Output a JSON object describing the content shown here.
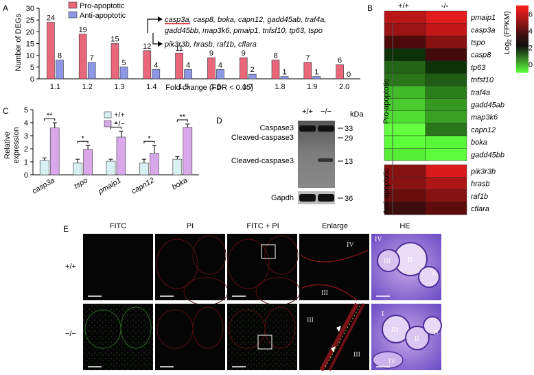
{
  "panels": {
    "A": "A",
    "B": "B",
    "C": "C",
    "D": "D",
    "E": "E"
  },
  "chart_data": [
    {
      "panel": "A",
      "type": "bar",
      "categories": [
        "1.1",
        "1.2",
        "1.3",
        "1.4",
        "1.5",
        "1.6",
        "1.7",
        "1.8",
        "1.9",
        "2.0"
      ],
      "series": [
        {
          "name": "Pro-apoptotic",
          "values": [
            24,
            19,
            15,
            12,
            11,
            9,
            9,
            8,
            7,
            6
          ],
          "color": "#e8677b"
        },
        {
          "name": "Anti-apoptotic",
          "values": [
            8,
            7,
            5,
            4,
            4,
            4,
            2,
            1,
            1,
            0
          ],
          "color": "#8e97e6"
        }
      ],
      "ylabel": "Number of DEGs",
      "xlabel": "Fold change (FDR < 0.05)",
      "ylim": [
        0,
        30
      ],
      "yticks": [
        "0",
        "5",
        "10",
        "15",
        "20",
        "25",
        "30"
      ],
      "annotation_pro": "casp3a, casp8, boka, capn12, gadd45ab, traf4a,",
      "annotation_pro_highlight": "casp3a",
      "annotation_pro_line2": "gadd45bb, map3k6, pmaip1, tnfsf10, tp63, tspo",
      "annotation_anti": "pik3r3b, hrasb, raf1b, cflara"
    },
    {
      "panel": "B",
      "type": "heatmap",
      "columns": [
        "+/+",
        "-/-"
      ],
      "rows": [
        "pmaip1",
        "casp3a",
        "tspo",
        "casp8",
        "tp63",
        "tnfsf10",
        "traf4a",
        "gadd45ab",
        "map3k6",
        "capn12",
        "boka",
        "gadd45bb",
        "pik3r3b",
        "hrasb",
        "raf1b",
        "cflara"
      ],
      "values": [
        [
          5.6,
          6.4
        ],
        [
          5.0,
          5.8
        ],
        [
          3.4,
          4.6
        ],
        [
          1.4,
          3.2
        ],
        [
          0.8,
          1.4
        ],
        [
          0.6,
          0.9
        ],
        [
          -0.2,
          0.5
        ],
        [
          -0.4,
          0.2
        ],
        [
          -0.6,
          0.1
        ],
        [
          -1.2,
          0.6
        ],
        [
          -1.0,
          -0.9
        ],
        [
          -0.8,
          -1.0
        ],
        [
          4.6,
          6.2
        ],
        [
          4.6,
          5.4
        ],
        [
          4.0,
          4.6
        ],
        [
          3.0,
          3.8
        ]
      ],
      "groups": [
        "Pro-apoptotic",
        "Anti-apoptotic"
      ],
      "colorbar_label": "Log2 (FPKM)",
      "colorbar_ticks": [
        "6",
        "4",
        "2",
        "0"
      ],
      "colorbar_range": [
        -1,
        7
      ]
    },
    {
      "panel": "C",
      "type": "bar",
      "categories": [
        "casp3a",
        "tspo",
        "pmaip1",
        "capn12",
        "boka"
      ],
      "series": [
        {
          "name": "+/+",
          "values": [
            1.1,
            0.9,
            1.05,
            0.9,
            1.2
          ],
          "errors": [
            0.2,
            0.3,
            0.15,
            0.3,
            0.2
          ],
          "color": "#d8f0f2"
        },
        {
          "name": "−/−",
          "values": [
            3.6,
            1.95,
            2.9,
            1.65,
            3.65
          ],
          "errors": [
            0.4,
            0.3,
            0.45,
            0.6,
            0.25
          ],
          "color": "#d8a8ea"
        }
      ],
      "ylabel": "Relative expression",
      "ylim": [
        0,
        5
      ],
      "yticks": [
        "0",
        "1",
        "2",
        "3",
        "4",
        "5"
      ],
      "significance": [
        "**",
        "*",
        "*",
        "*",
        "**"
      ]
    }
  ],
  "blot": {
    "cols": [
      "+/+",
      "−/−"
    ],
    "unit": "kDa",
    "labels": [
      "Caspase3",
      "Cleaved-caspase3",
      "Cleaved-caspase3",
      "Gapdh"
    ],
    "markers": [
      "33",
      "29",
      "13",
      "36"
    ]
  },
  "micro": {
    "columns": [
      "FITC",
      "PI",
      "FITC + PI",
      "Enlarge",
      "HE"
    ],
    "rows": [
      "+/+",
      "−/−"
    ],
    "roman": {
      "IV": "IV",
      "III": "III",
      "II": "II",
      "I": "I"
    }
  }
}
